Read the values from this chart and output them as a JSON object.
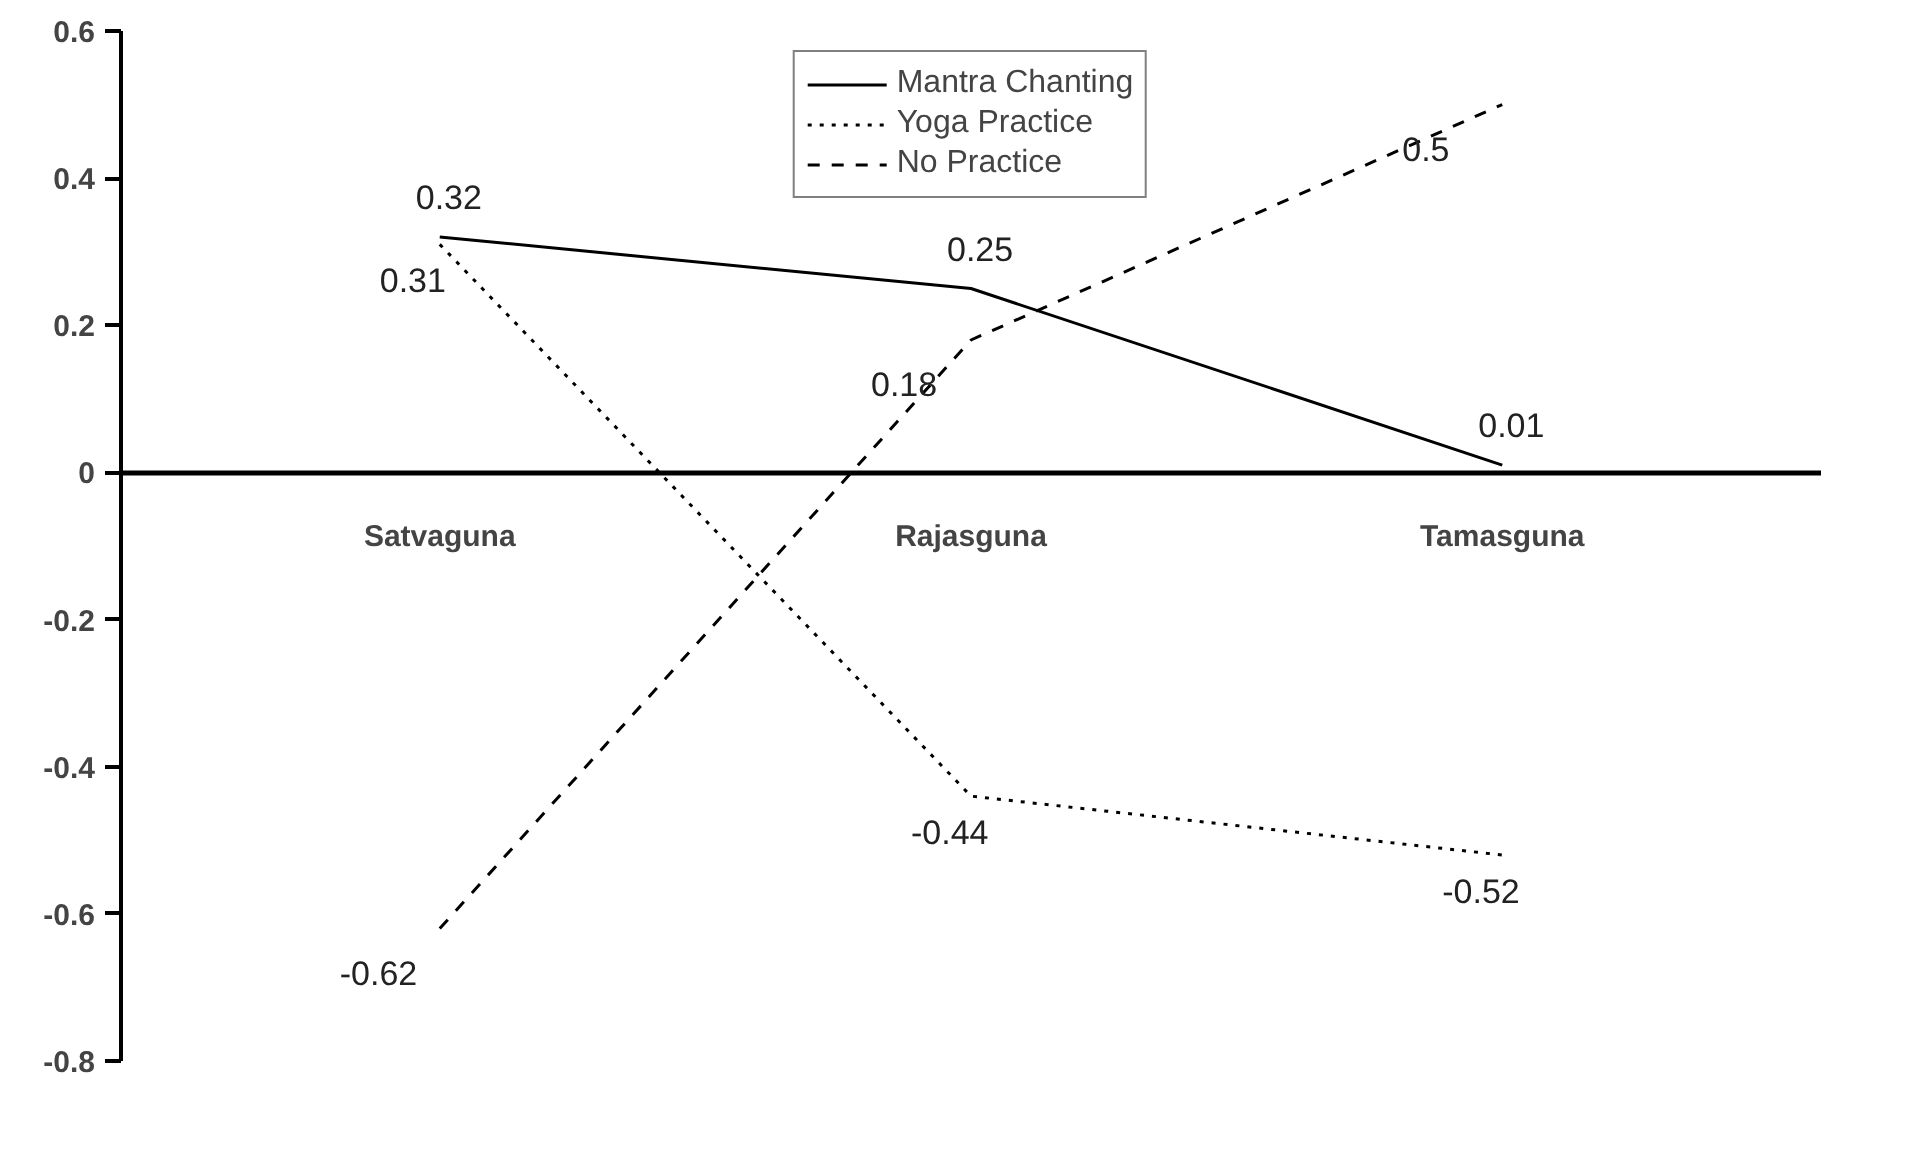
{
  "chart_data": {
    "type": "line",
    "categories": [
      "Satvaguna",
      "Rajasguna",
      "Tamasguna"
    ],
    "series": [
      {
        "name": "Mantra Chanting",
        "color": "#000000",
        "line_style": "solid",
        "values": [
          0.32,
          0.25,
          0.01
        ]
      },
      {
        "name": "Yoga Practice",
        "color": "#000000",
        "line_style": "dotted",
        "values": [
          0.31,
          -0.44,
          -0.52
        ]
      },
      {
        "name": "No Practice",
        "color": "#000000",
        "line_style": "dashed",
        "values": [
          -0.62,
          0.18,
          0.5
        ]
      }
    ],
    "ylim": [
      -0.8,
      0.6
    ],
    "yticks": [
      -0.8,
      -0.6,
      -0.4,
      -0.2,
      0,
      0.2,
      0.4,
      0.6
    ],
    "grid": false,
    "legend": "top",
    "data_labels": true
  }
}
